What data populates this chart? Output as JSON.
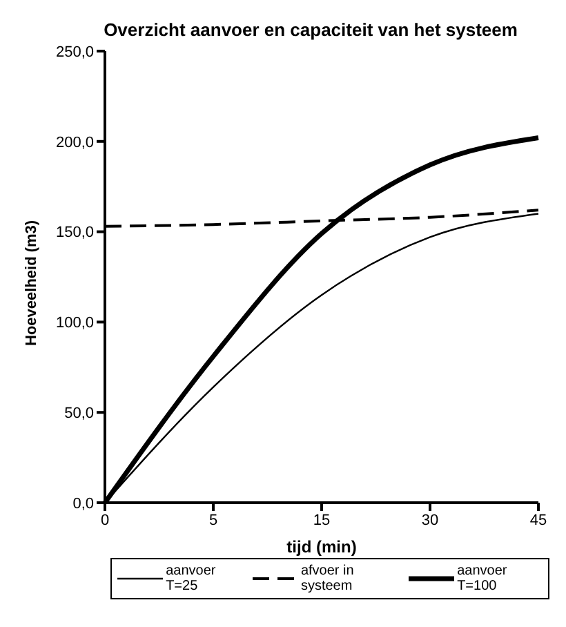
{
  "chart_data": {
    "type": "line",
    "title": "Overzicht aanvoer en capaciteit van het systeem",
    "xlabel": "tijd (min)",
    "ylabel": "Hoeveelheid (m3)",
    "categories": [
      "0",
      "5",
      "15",
      "30",
      "45"
    ],
    "series": [
      {
        "name": "aanvoer T=25",
        "color": "#000000",
        "values": [
          0,
          64,
          115,
          147,
          160
        ]
      },
      {
        "name": "afvoer in systeem",
        "color": "#000000",
        "line_style": "dashed",
        "values": [
          153,
          154,
          156,
          158,
          162
        ]
      },
      {
        "name": "aanvoer T=100",
        "color": "#000000",
        "values": [
          0,
          81,
          149,
          187,
          202
        ]
      }
    ],
    "ylim": [
      0,
      250
    ],
    "yticks": [
      {
        "value": 0,
        "label": "0,0"
      },
      {
        "value": 50,
        "label": "50,0"
      },
      {
        "value": 100,
        "label": "100,0"
      },
      {
        "value": 150,
        "label": "150,0"
      },
      {
        "value": 200,
        "label": "200,0"
      },
      {
        "value": 250,
        "label": "250,0"
      }
    ],
    "grid": false,
    "legend": "bottom",
    "line_style": "solid",
    "marker": "none"
  }
}
